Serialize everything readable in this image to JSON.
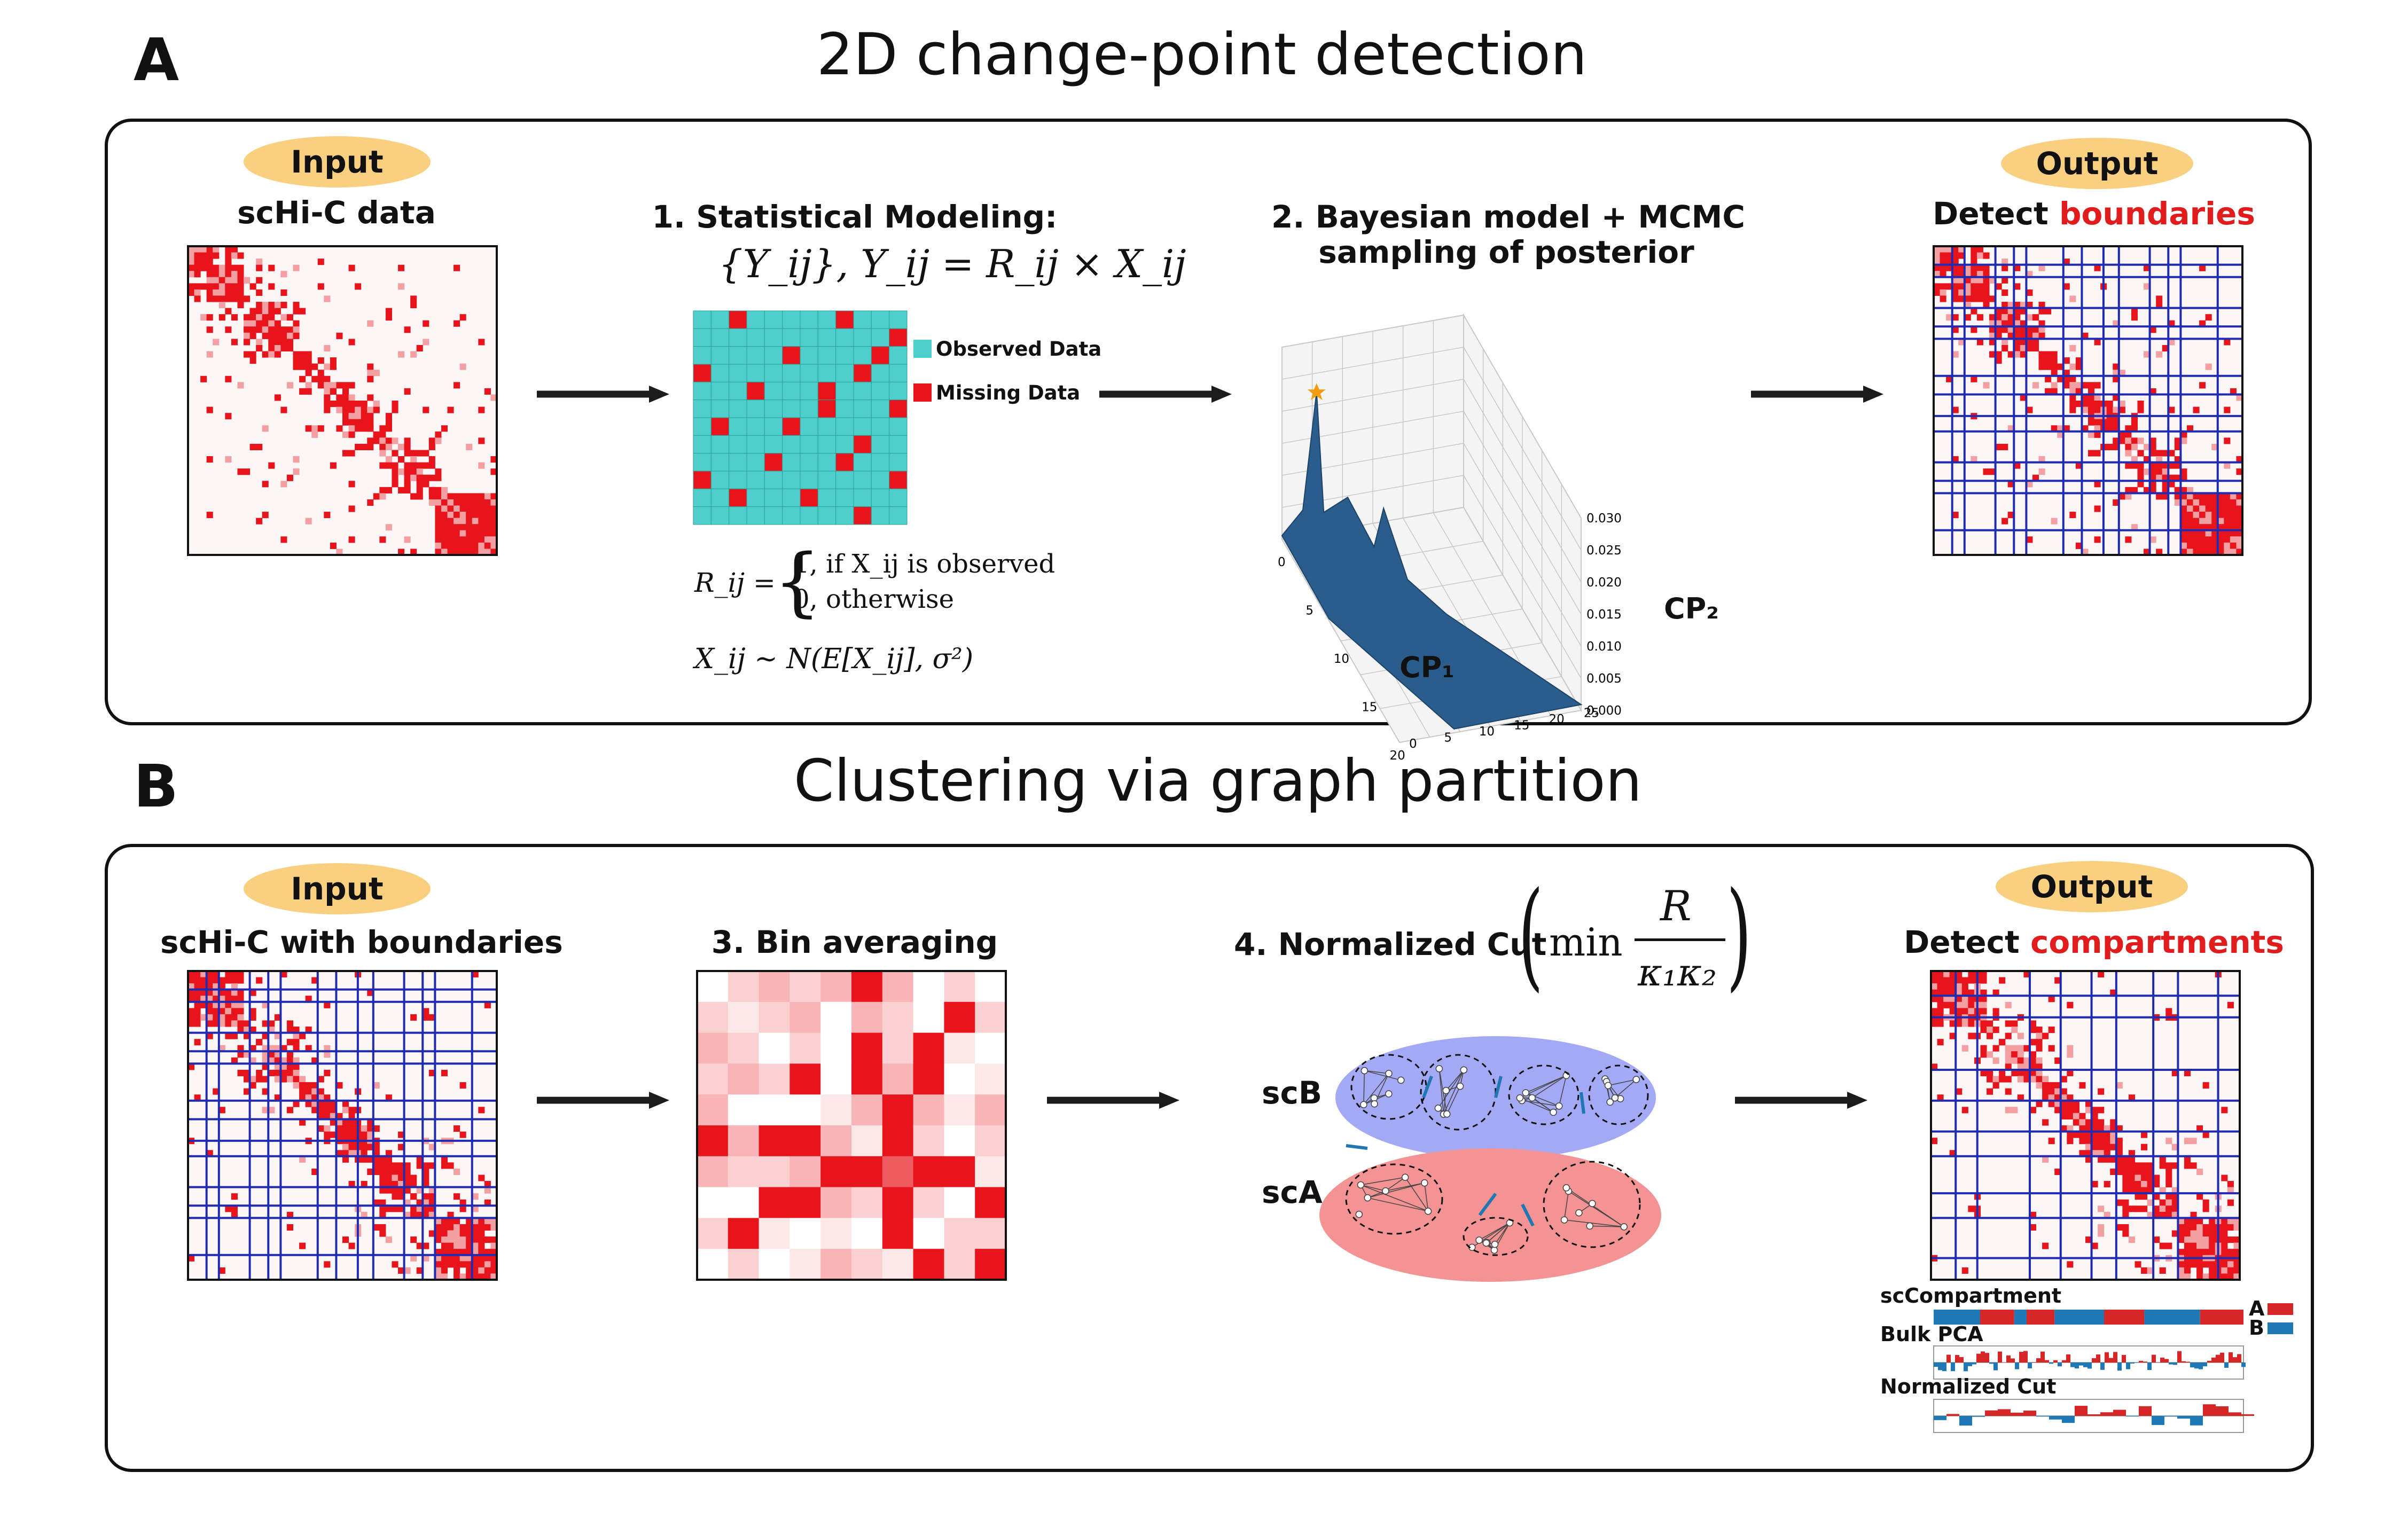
{
  "panelA": {
    "letter": "A",
    "title": "2D change-point detection",
    "input_pill": "Input",
    "input_label": "scHi-C data",
    "step1_title": "1. Statistical Modeling:",
    "step1_formula": "{Y_ij}, Y_ij = R_ij × X_ij",
    "legend_observed": "Observed Data",
    "legend_missing": "Missing Data",
    "r_def_lhs": "R_ij =",
    "r_case1": "1,    if X_ij is observed",
    "r_case0": "0,    otherwise",
    "x_dist": "X_ij ~ N(E[X_ij], σ²)",
    "step2_line1": "2. Bayesian model + MCMC",
    "step2_line2": "sampling of posterior",
    "cp1": "CP₁",
    "cp2": "CP₂",
    "z_ticks": [
      "0.030",
      "0.025",
      "0.020",
      "0.015",
      "0.010",
      "0.005",
      "0.000"
    ],
    "x_ticks": [
      "0",
      "5",
      "10",
      "15",
      "20"
    ],
    "y_ticks": [
      "0",
      "5",
      "10",
      "15",
      "20",
      "25"
    ],
    "output_pill": "Output",
    "output_prefix": "Detect ",
    "output_highlight": "boundaries"
  },
  "panelB": {
    "letter": "B",
    "title": "Clustering via graph partition",
    "input_pill": "Input",
    "input_label": "scHi-C with boundaries",
    "step3_title": "3. Bin averaging",
    "step4_title": "4. Normalized Cut",
    "ncut_min": "min",
    "ncut_num": "R",
    "ncut_den": "κ₁κ₂",
    "scB": "scB",
    "scA": "scA",
    "output_pill": "Output",
    "output_prefix": "Detect ",
    "output_highlight": "compartments",
    "track1": "scCompartment",
    "track2": "Bulk PCA",
    "track3": "Normalized Cut",
    "legendA": "A",
    "legendB": "B"
  },
  "colors": {
    "heat_red": "#e8141c",
    "cyan": "#4ecfcb",
    "boundary_blue": "#1f2bb0",
    "pill": "#f9cf80",
    "scB_fill": "#a3a9f5",
    "scA_fill": "#f49393",
    "surface": "#2a5d8c",
    "comp_red": "#d62728",
    "comp_blue": "#1f77b4"
  }
}
